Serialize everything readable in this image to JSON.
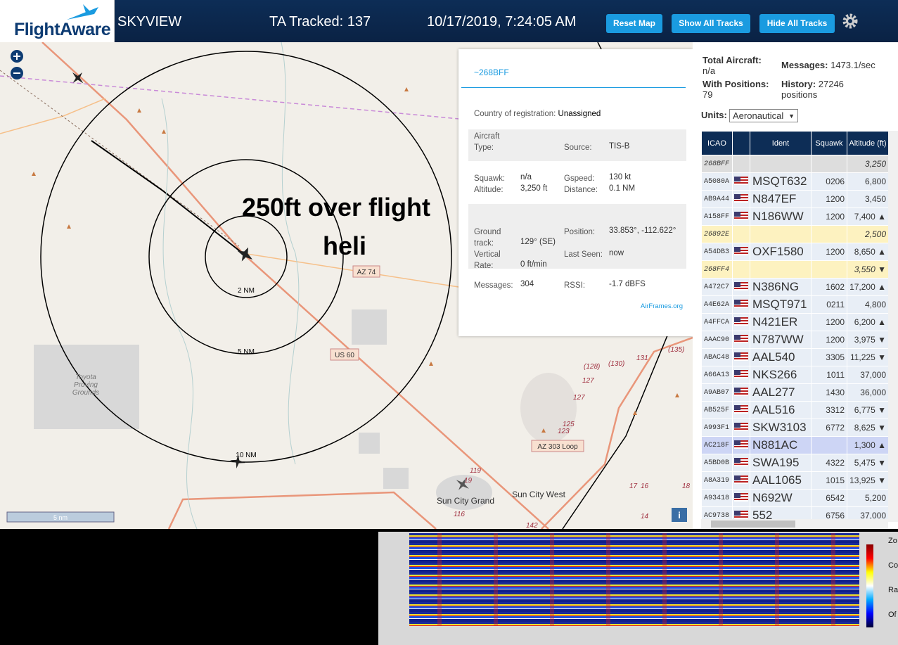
{
  "header": {
    "logo": "FlightAware",
    "app": "SKYVIEW",
    "tracked": "TA Tracked: 137",
    "datetime": "10/17/2019, 7:24:05 AM",
    "buttons": [
      "Reset Map",
      "Show All Tracks",
      "Hide All Tracks"
    ]
  },
  "map": {
    "annotation": [
      "250ft over flight",
      "heli"
    ],
    "rings": [
      "2 NM",
      "5 NM",
      "10 NM"
    ],
    "roads": [
      "AZ 74",
      "US 60",
      "AZ 303 Loop"
    ],
    "places": [
      "Toyota",
      "Proving",
      "Grounds",
      "Sun City Grand",
      "Sun City West"
    ],
    "route_numbers": [
      "(135)",
      "(130)",
      "131",
      "(128)",
      "127",
      "127",
      "125",
      "123",
      "119",
      "19",
      "116",
      "142",
      "17",
      "16",
      "18",
      "14"
    ],
    "scale": "5 nm"
  },
  "popup": {
    "id": "~268BFF",
    "country": {
      "label": "Country of registration:",
      "value": "Unassigned"
    },
    "fields": [
      {
        "label": "Aircraft Type:"
      },
      {
        "label": "Source:",
        "value": "TIS-B"
      },
      {
        "label": "Squawk:",
        "value": "n/a"
      },
      {
        "label": "Gspeed:",
        "value": "130 kt"
      },
      {
        "label": "Altitude:",
        "value": "3,250 ft"
      },
      {
        "label": "Distance:",
        "value": "0.1 NM"
      },
      {
        "label": "Ground track:",
        "value": "129° (SE)"
      },
      {
        "label": "Position:",
        "value": "33.853°, -112.622°"
      },
      {
        "label": "Vertical Rate:",
        "value": "0 ft/min"
      },
      {
        "label": "Last Seen:",
        "value": "now"
      },
      {
        "label": "Messages:",
        "value": "304"
      },
      {
        "label": "RSSI:",
        "value": "-1.7 dBFS"
      }
    ],
    "link": "AirFrames.org"
  },
  "stats": {
    "total": {
      "label": "Total Aircraft:",
      "value": "n/a"
    },
    "messages": {
      "label": "Messages:",
      "value": "1473.1/sec"
    },
    "positions": {
      "label": "With Positions:",
      "value": "79"
    },
    "history": {
      "label": "History:",
      "value": "27246 positions"
    },
    "units_label": "Units:",
    "units": "Aeronautical"
  },
  "table": {
    "headers": [
      "ICAO",
      "Ident",
      "Squawk",
      "Altitude (ft)"
    ],
    "rows": [
      {
        "icao": "268BFF",
        "altitude": "3,250"
      },
      {
        "icao": "A5080A",
        "ident": "MSQT632",
        "squawk": "0206",
        "altitude": "6,800"
      },
      {
        "icao": "AB9A44",
        "ident": "N847EF",
        "squawk": "1200",
        "altitude": "3,450"
      },
      {
        "icao": "A158FF",
        "ident": "N186WW",
        "squawk": "1200",
        "altitude": "7,400 ▲"
      },
      {
        "icao": "26892E",
        "altitude": "2,500"
      },
      {
        "icao": "A54DB3",
        "ident": "OXF1580",
        "squawk": "1200",
        "altitude": "8,650 ▲"
      },
      {
        "icao": "268FF4",
        "altitude": "3,550 ▼"
      },
      {
        "icao": "A472C7",
        "ident": "N386NG",
        "squawk": "1602",
        "altitude": "17,200 ▲"
      },
      {
        "icao": "A4E62A",
        "ident": "MSQT971",
        "squawk": "0211",
        "altitude": "4,800"
      },
      {
        "icao": "A4FFCA",
        "ident": "N421ER",
        "squawk": "1200",
        "altitude": "6,200 ▲"
      },
      {
        "icao": "AAAC90",
        "ident": "N787WW",
        "squawk": "1200",
        "altitude": "3,975 ▼"
      },
      {
        "icao": "ABAC48",
        "ident": "AAL540",
        "squawk": "3305",
        "altitude": "11,225 ▼"
      },
      {
        "icao": "A66A13",
        "ident": "NKS266",
        "squawk": "1011",
        "altitude": "37,000"
      },
      {
        "icao": "A9AB07",
        "ident": "AAL277",
        "squawk": "1430",
        "altitude": "36,000"
      },
      {
        "icao": "AB525F",
        "ident": "AAL516",
        "squawk": "3312",
        "altitude": "6,775 ▼"
      },
      {
        "icao": "A993F1",
        "ident": "SKW3103",
        "squawk": "6772",
        "altitude": "8,625 ▼"
      },
      {
        "icao": "AC218F",
        "ident": "N881AC",
        "altitude": "1,300 ▲"
      },
      {
        "icao": "A5BD0B",
        "ident": "SWA195",
        "squawk": "4322",
        "altitude": "5,475 ▼"
      },
      {
        "icao": "A8A319",
        "ident": "AAL1065",
        "squawk": "1015",
        "altitude": "13,925 ▼"
      },
      {
        "icao": "A93418",
        "ident": "N692W",
        "squawk": "6542",
        "altitude": "5,200"
      },
      {
        "icao": "AC9738",
        "ident": "552",
        "squawk": "6756",
        "altitude": "37,000"
      }
    ]
  },
  "spectrum": {
    "controls": [
      "Zo",
      "Con",
      "Ra",
      "Of"
    ]
  }
}
